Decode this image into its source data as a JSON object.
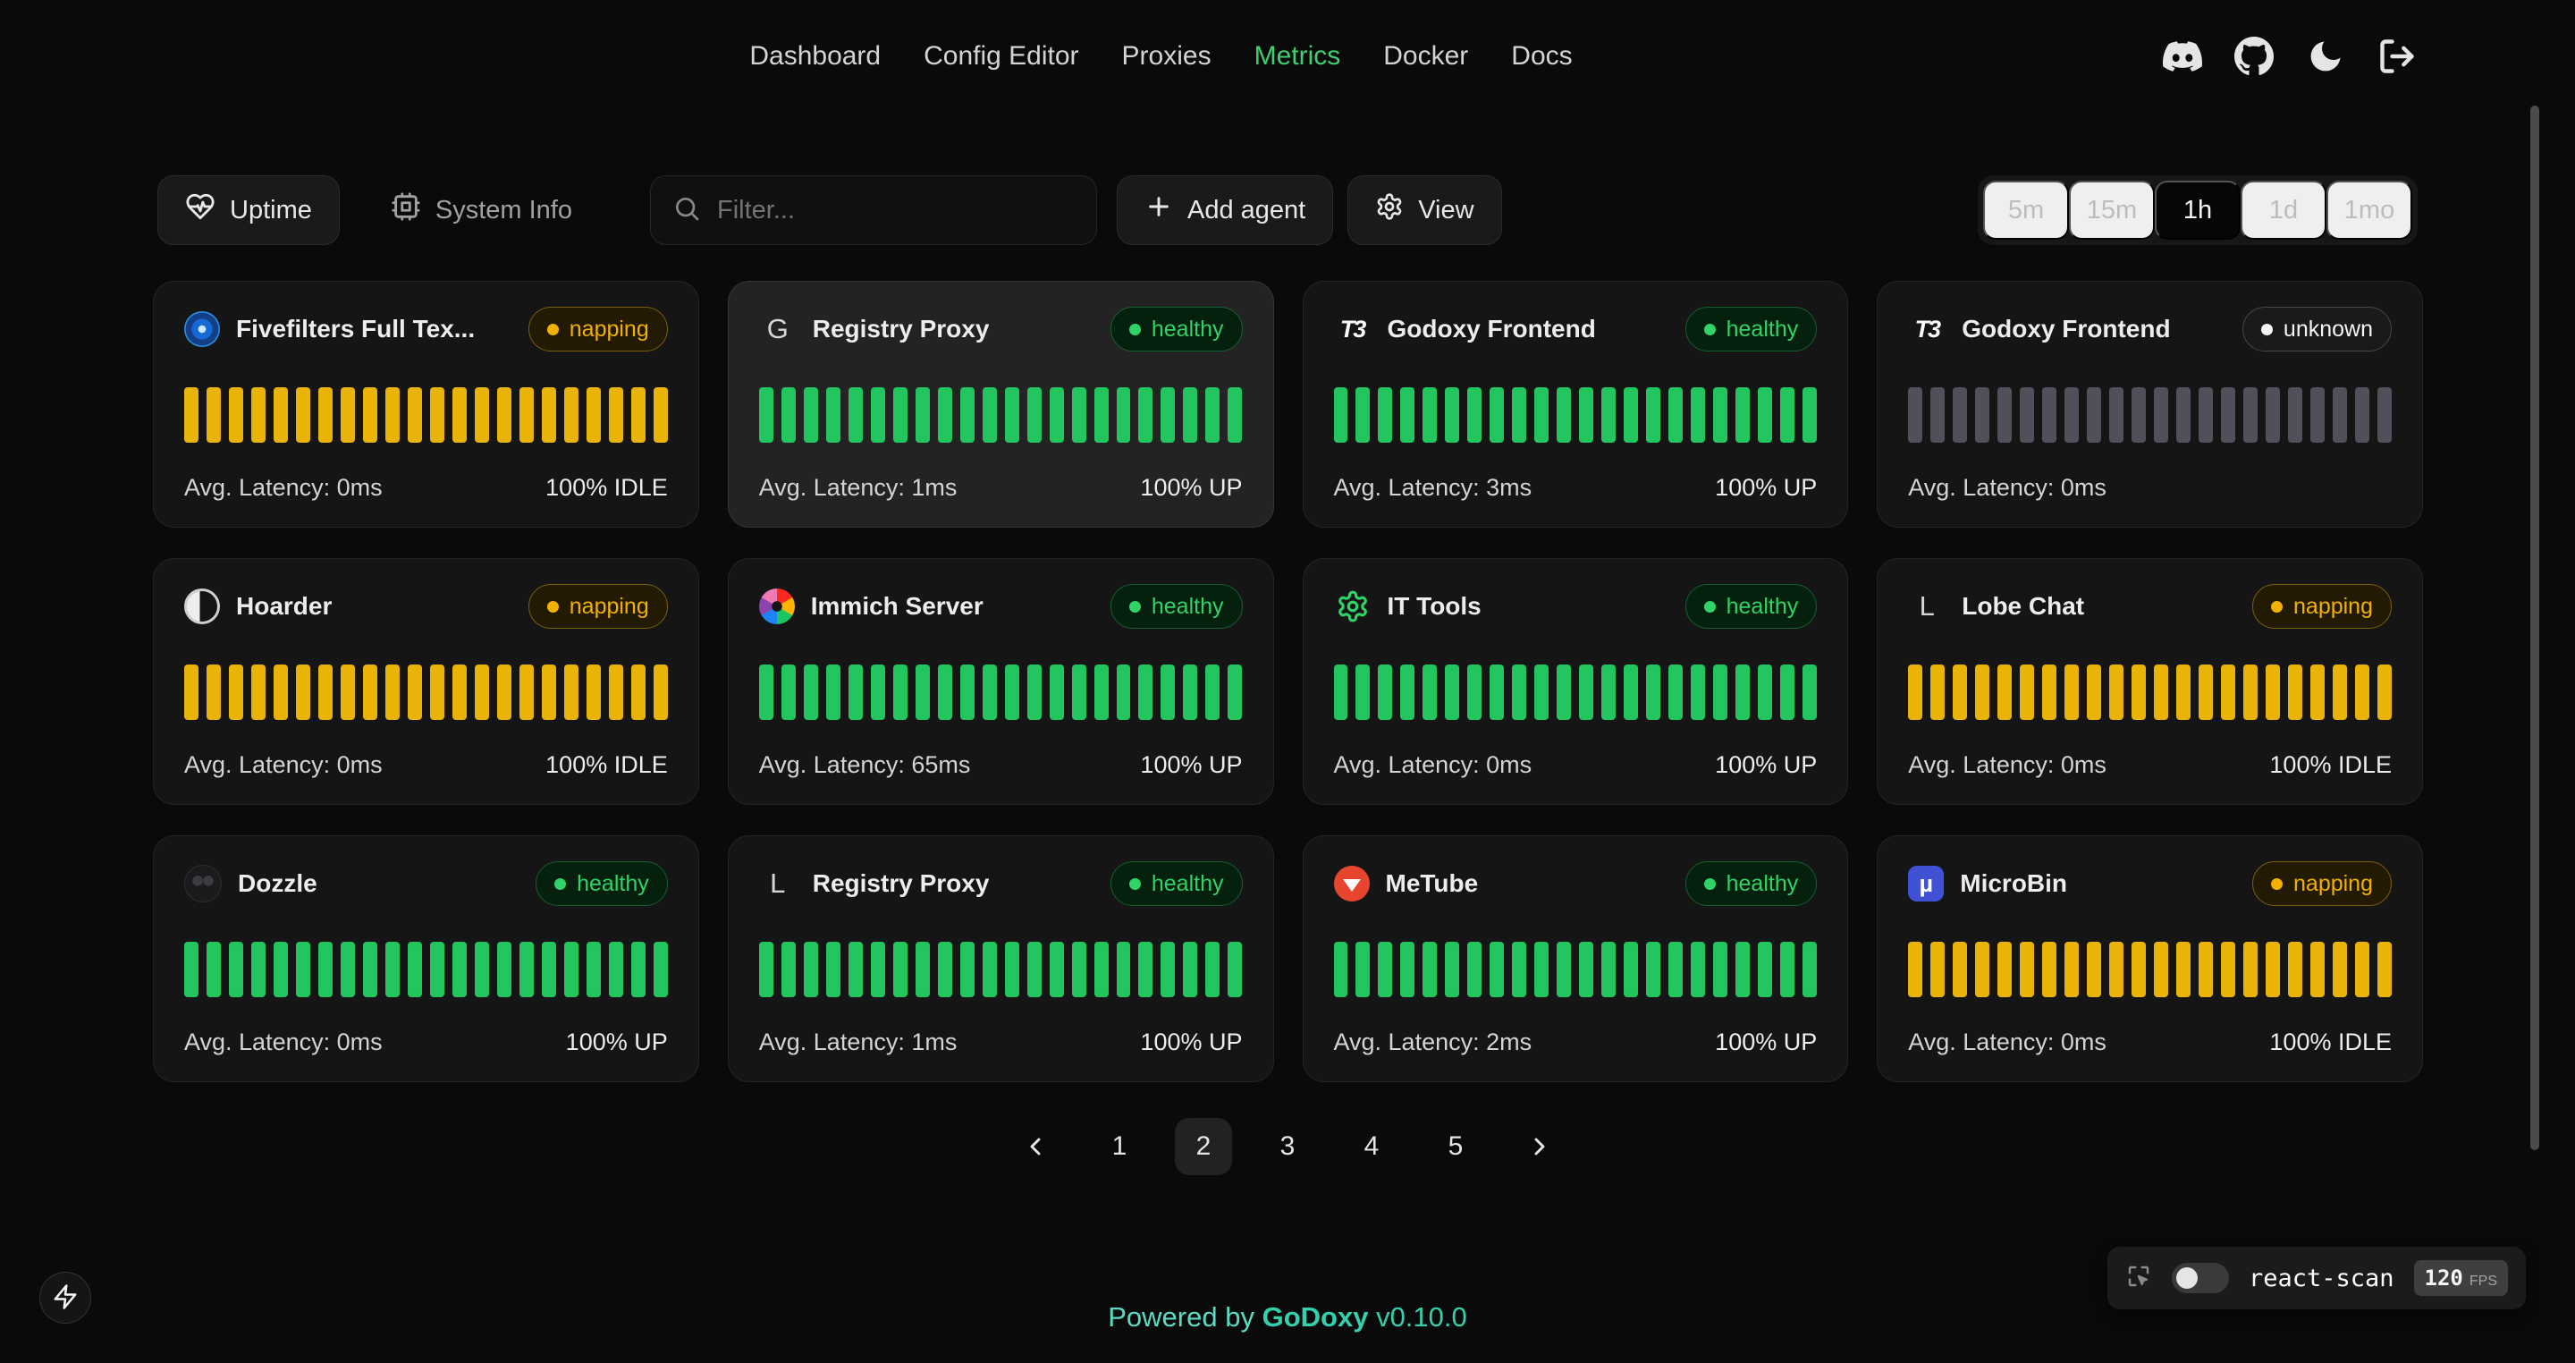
{
  "nav": {
    "items": [
      {
        "label": "Dashboard",
        "active": false
      },
      {
        "label": "Config Editor",
        "active": false
      },
      {
        "label": "Proxies",
        "active": false
      },
      {
        "label": "Metrics",
        "active": true
      },
      {
        "label": "Docker",
        "active": false
      },
      {
        "label": "Docs",
        "active": false
      }
    ],
    "top_icons": [
      "discord",
      "github",
      "dark-mode",
      "logout"
    ]
  },
  "toolbar": {
    "uptime_label": "Uptime",
    "system_info_label": "System Info",
    "filter_placeholder": "Filter...",
    "add_agent_label": "Add agent",
    "view_label": "View",
    "time_ranges": [
      "5m",
      "15m",
      "1h",
      "1d",
      "1mo"
    ],
    "active_range": "1h"
  },
  "uptime_chart": {
    "type": "bar",
    "bar_count": 22,
    "colors": {
      "healthy": "#22c55e",
      "napping": "#eab308",
      "unknown": "#50505a"
    }
  },
  "cards": [
    {
      "name": "Fivefilters Full Tex...",
      "status": "napping",
      "latency": "Avg. Latency: 0ms",
      "uptime": "100% IDLE",
      "icon": "fivefilters",
      "glyph": "",
      "highlight": false
    },
    {
      "name": "Registry Proxy",
      "status": "healthy",
      "latency": "Avg. Latency: 1ms",
      "uptime": "100% UP",
      "icon": "letter",
      "glyph": "G",
      "highlight": true
    },
    {
      "name": "Godoxy Frontend",
      "status": "healthy",
      "latency": "Avg. Latency: 3ms",
      "uptime": "100% UP",
      "icon": "t3",
      "glyph": "T3",
      "highlight": false
    },
    {
      "name": "Godoxy Frontend",
      "status": "unknown",
      "latency": "Avg. Latency: 0ms",
      "uptime": "",
      "icon": "t3",
      "glyph": "T3",
      "highlight": false
    },
    {
      "name": "Hoarder",
      "status": "napping",
      "latency": "Avg. Latency: 0ms",
      "uptime": "100% IDLE",
      "icon": "hoarder",
      "glyph": "",
      "highlight": false
    },
    {
      "name": "Immich Server",
      "status": "healthy",
      "latency": "Avg. Latency: 65ms",
      "uptime": "100% UP",
      "icon": "immich",
      "glyph": "",
      "highlight": false
    },
    {
      "name": "IT Tools",
      "status": "healthy",
      "latency": "Avg. Latency: 0ms",
      "uptime": "100% UP",
      "icon": "ittools",
      "glyph": "",
      "highlight": false
    },
    {
      "name": "Lobe Chat",
      "status": "napping",
      "latency": "Avg. Latency: 0ms",
      "uptime": "100% IDLE",
      "icon": "letter",
      "glyph": "L",
      "highlight": false
    },
    {
      "name": "Dozzle",
      "status": "healthy",
      "latency": "Avg. Latency: 0ms",
      "uptime": "100% UP",
      "icon": "dozzle",
      "glyph": "",
      "highlight": false
    },
    {
      "name": "Registry Proxy",
      "status": "healthy",
      "latency": "Avg. Latency: 1ms",
      "uptime": "100% UP",
      "icon": "letter",
      "glyph": "L",
      "highlight": false
    },
    {
      "name": "MeTube",
      "status": "healthy",
      "latency": "Avg. Latency: 2ms",
      "uptime": "100% UP",
      "icon": "metube",
      "glyph": "",
      "highlight": false
    },
    {
      "name": "MicroBin",
      "status": "napping",
      "latency": "Avg. Latency: 0ms",
      "uptime": "100% IDLE",
      "icon": "microbin",
      "glyph": "µ",
      "highlight": false
    }
  ],
  "pagination": {
    "pages": [
      "1",
      "2",
      "3",
      "4",
      "5"
    ],
    "active": "2"
  },
  "footer": {
    "powered_by": "Powered by",
    "brand": "GoDoxy",
    "version": "v0.10.0"
  },
  "react_scan": {
    "label": "react-scan",
    "fps": "120",
    "fps_unit": "FPS"
  },
  "colors": {
    "background": "#0a0a0a",
    "card": "#151515",
    "accent_green": "#3ecf6e",
    "brand_teal": "#34d0ae",
    "status_healthy": "#2fd367",
    "status_napping": "#f0b100",
    "status_unknown": "#f5f5f5"
  }
}
